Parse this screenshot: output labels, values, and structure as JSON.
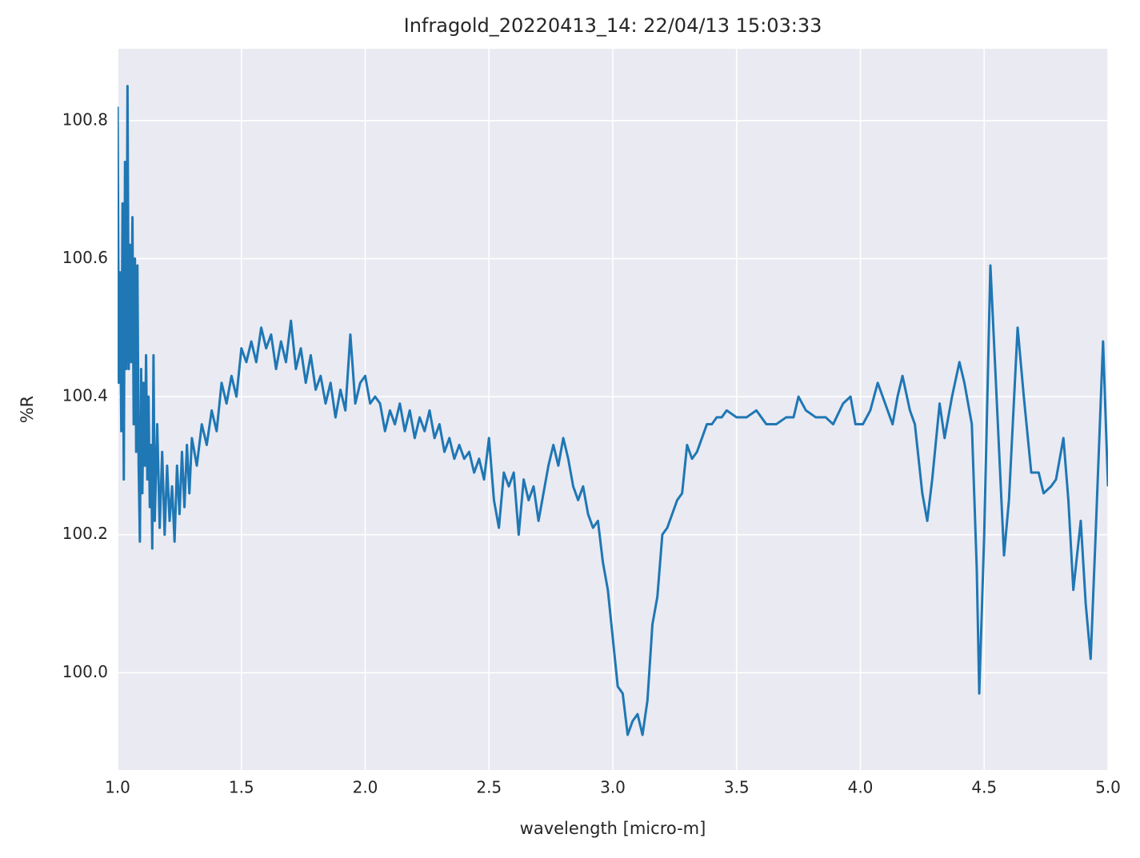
{
  "chart_data": {
    "type": "line",
    "title": "Infragold_20220413_14:  22/04/13 15:03:33",
    "xlabel": "wavelength [micro-m]",
    "ylabel": "%R",
    "color": "#1f77b4",
    "grid": true,
    "xlim": [
      1,
      5
    ],
    "ylim": [
      99.859,
      100.904
    ],
    "xticks": [
      {
        "value": 1,
        "label": "1.0"
      },
      1.5,
      {
        "value": 2,
        "label": "2.0"
      },
      2.5,
      {
        "value": 3,
        "label": "3.0"
      },
      3.5,
      {
        "value": 4,
        "label": "4.0"
      },
      4.5,
      {
        "value": 5,
        "label": "5.0"
      }
    ],
    "yticks": [
      {
        "value": 100,
        "label": "100.0"
      },
      100.2,
      100.4,
      100.6,
      100.8
    ],
    "x": [
      1.0,
      1.005,
      1.01,
      1.015,
      1.02,
      1.025,
      1.03,
      1.035,
      1.04,
      1.045,
      1.05,
      1.055,
      1.06,
      1.065,
      1.07,
      1.075,
      1.08,
      1.085,
      1.09,
      1.095,
      1.1,
      1.105,
      1.11,
      1.115,
      1.12,
      1.125,
      1.13,
      1.135,
      1.14,
      1.145,
      1.15,
      1.16,
      1.17,
      1.18,
      1.19,
      1.2,
      1.21,
      1.22,
      1.23,
      1.24,
      1.25,
      1.26,
      1.27,
      1.28,
      1.29,
      1.3,
      1.32,
      1.34,
      1.36,
      1.38,
      1.4,
      1.42,
      1.44,
      1.46,
      1.48,
      1.5,
      1.52,
      1.54,
      1.56,
      1.58,
      1.6,
      1.62,
      1.64,
      1.66,
      1.68,
      1.7,
      1.72,
      1.74,
      1.76,
      1.78,
      1.8,
      1.82,
      1.84,
      1.86,
      1.88,
      1.9,
      1.92,
      1.94,
      1.96,
      1.98,
      2.0,
      2.02,
      2.04,
      2.06,
      2.08,
      2.1,
      2.12,
      2.14,
      2.16,
      2.18,
      2.2,
      2.22,
      2.24,
      2.26,
      2.28,
      2.3,
      2.32,
      2.34,
      2.36,
      2.38,
      2.4,
      2.42,
      2.44,
      2.46,
      2.48,
      2.5,
      2.52,
      2.54,
      2.56,
      2.58,
      2.6,
      2.62,
      2.64,
      2.66,
      2.68,
      2.7,
      2.72,
      2.74,
      2.76,
      2.78,
      2.8,
      2.82,
      2.84,
      2.86,
      2.88,
      2.9,
      2.92,
      2.94,
      2.96,
      2.98,
      3.0,
      3.02,
      3.04,
      3.06,
      3.08,
      3.1,
      3.12,
      3.14,
      3.16,
      3.18,
      3.2,
      3.22,
      3.24,
      3.26,
      3.28,
      3.3,
      3.32,
      3.34,
      3.36,
      3.38,
      3.4,
      3.42,
      3.44,
      3.46,
      3.5,
      3.54,
      3.58,
      3.62,
      3.66,
      3.7,
      3.73,
      3.75,
      3.78,
      3.82,
      3.86,
      3.89,
      3.93,
      3.96,
      3.98,
      4.01,
      4.04,
      4.07,
      4.1,
      4.13,
      4.15,
      4.17,
      4.2,
      4.22,
      4.25,
      4.27,
      4.29,
      4.32,
      4.34,
      4.37,
      4.4,
      4.42,
      4.45,
      4.47,
      4.48,
      4.5,
      4.525,
      4.55,
      4.58,
      4.6,
      4.635,
      4.66,
      4.69,
      4.72,
      4.74,
      4.77,
      4.79,
      4.82,
      4.84,
      4.86,
      4.89,
      4.91,
      4.93,
      4.95,
      4.98,
      5.0
    ],
    "values": [
      100.82,
      100.42,
      100.58,
      100.35,
      100.68,
      100.28,
      100.74,
      100.44,
      100.85,
      100.44,
      100.62,
      100.45,
      100.66,
      100.36,
      100.6,
      100.32,
      100.59,
      100.3,
      100.19,
      100.44,
      100.26,
      100.42,
      100.3,
      100.46,
      100.28,
      100.4,
      100.24,
      100.33,
      100.18,
      100.46,
      100.22,
      100.36,
      100.21,
      100.32,
      100.2,
      100.3,
      100.22,
      100.27,
      100.19,
      100.3,
      100.23,
      100.32,
      100.24,
      100.33,
      100.26,
      100.34,
      100.3,
      100.36,
      100.33,
      100.38,
      100.35,
      100.42,
      100.39,
      100.43,
      100.4,
      100.47,
      100.45,
      100.48,
      100.45,
      100.5,
      100.47,
      100.49,
      100.44,
      100.48,
      100.45,
      100.51,
      100.44,
      100.47,
      100.42,
      100.46,
      100.41,
      100.43,
      100.39,
      100.42,
      100.37,
      100.41,
      100.38,
      100.49,
      100.39,
      100.42,
      100.43,
      100.39,
      100.4,
      100.39,
      100.35,
      100.38,
      100.36,
      100.39,
      100.35,
      100.38,
      100.34,
      100.37,
      100.35,
      100.38,
      100.34,
      100.36,
      100.32,
      100.34,
      100.31,
      100.33,
      100.31,
      100.32,
      100.29,
      100.31,
      100.28,
      100.34,
      100.25,
      100.21,
      100.29,
      100.27,
      100.29,
      100.2,
      100.28,
      100.25,
      100.27,
      100.22,
      100.26,
      100.3,
      100.33,
      100.3,
      100.34,
      100.31,
      100.27,
      100.25,
      100.27,
      100.23,
      100.21,
      100.22,
      100.16,
      100.12,
      100.05,
      99.98,
      99.97,
      99.91,
      99.93,
      99.94,
      99.91,
      99.96,
      100.07,
      100.11,
      100.2,
      100.21,
      100.23,
      100.25,
      100.26,
      100.33,
      100.31,
      100.32,
      100.34,
      100.36,
      100.36,
      100.37,
      100.37,
      100.38,
      100.37,
      100.37,
      100.38,
      100.36,
      100.36,
      100.37,
      100.37,
      100.4,
      100.38,
      100.37,
      100.37,
      100.36,
      100.39,
      100.4,
      100.36,
      100.36,
      100.38,
      100.42,
      100.39,
      100.36,
      100.4,
      100.43,
      100.38,
      100.36,
      100.26,
      100.22,
      100.28,
      100.39,
      100.34,
      100.4,
      100.45,
      100.42,
      100.36,
      100.15,
      99.97,
      100.2,
      100.59,
      100.4,
      100.17,
      100.25,
      100.5,
      100.4,
      100.29,
      100.29,
      100.26,
      100.27,
      100.28,
      100.34,
      100.25,
      100.12,
      100.22,
      100.1,
      100.02,
      100.2,
      100.48,
      100.27
    ]
  }
}
